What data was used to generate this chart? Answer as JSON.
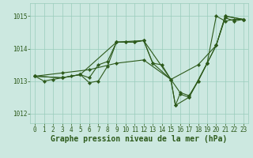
{
  "background_color": "#cce8e0",
  "grid_color": "#99ccbb",
  "line_color": "#2d5a1b",
  "marker_color": "#2d5a1b",
  "xlabel": "Graphe pression niveau de la mer (hPa)",
  "xlabel_fontsize": 7,
  "ylim": [
    1011.7,
    1015.4
  ],
  "xlim": [
    -0.5,
    23.5
  ],
  "yticks": [
    1012,
    1013,
    1014,
    1015
  ],
  "xticks": [
    0,
    1,
    2,
    3,
    4,
    5,
    6,
    7,
    8,
    9,
    10,
    11,
    12,
    13,
    14,
    15,
    16,
    17,
    18,
    19,
    20,
    21,
    22,
    23
  ],
  "series": [
    {
      "x": [
        0,
        3,
        6,
        9,
        12,
        15,
        18,
        20,
        21,
        22,
        23
      ],
      "y": [
        1013.15,
        1013.25,
        1013.35,
        1013.55,
        1013.65,
        1013.05,
        1013.5,
        1014.1,
        1014.95,
        1014.85,
        1014.9
      ]
    },
    {
      "x": [
        0,
        1,
        2,
        3,
        4,
        5,
        6,
        7,
        8,
        9,
        10,
        11,
        12,
        13,
        14,
        15,
        16,
        17,
        18,
        19,
        20,
        21,
        22,
        23
      ],
      "y": [
        1013.15,
        1013.0,
        1013.05,
        1013.1,
        1013.15,
        1013.2,
        1012.95,
        1013.0,
        1013.45,
        1014.2,
        1014.2,
        1014.2,
        1014.25,
        1013.55,
        1013.5,
        1013.05,
        1012.65,
        1012.55,
        1013.0,
        1013.55,
        1015.0,
        1014.85,
        1014.9,
        1014.9
      ]
    },
    {
      "x": [
        0,
        3,
        5,
        6,
        7,
        8,
        9,
        10,
        11,
        12,
        13,
        15,
        15.5,
        16,
        17,
        18,
        19,
        20,
        21,
        23
      ],
      "y": [
        1013.15,
        1013.1,
        1013.2,
        1013.1,
        1013.5,
        1013.6,
        1014.2,
        1014.2,
        1014.2,
        1014.25,
        1013.55,
        1013.05,
        1012.25,
        1012.6,
        1012.5,
        1013.0,
        1013.55,
        1014.1,
        1015.0,
        1014.9
      ]
    },
    {
      "x": [
        0,
        3,
        5,
        9,
        12,
        15,
        15.5,
        17,
        19,
        20,
        21,
        23
      ],
      "y": [
        1013.15,
        1013.1,
        1013.2,
        1014.2,
        1014.25,
        1013.05,
        1012.25,
        1012.5,
        1013.55,
        1014.1,
        1015.0,
        1014.9
      ]
    }
  ]
}
